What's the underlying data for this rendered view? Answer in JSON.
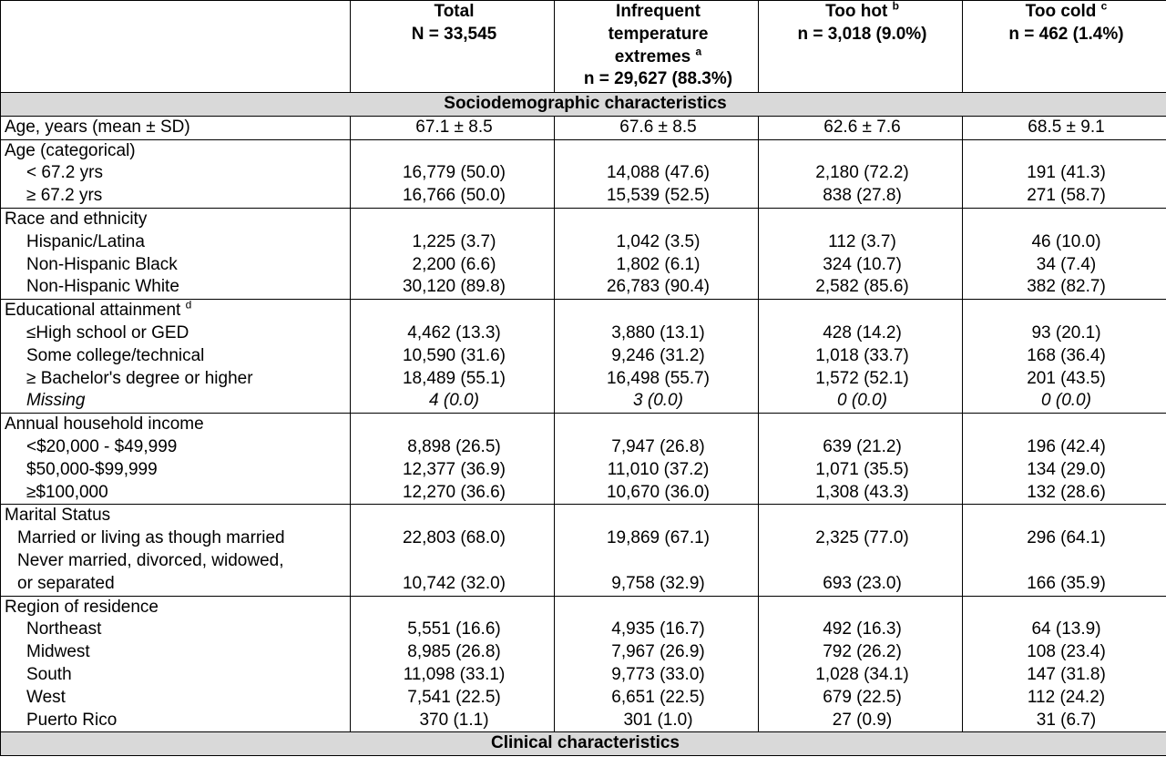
{
  "header": {
    "columns": [
      {
        "l1": "",
        "l2": "",
        "l3": "",
        "l4": "",
        "sup": ""
      },
      {
        "l1": "Total",
        "l2": "N = 33,545",
        "l3": "",
        "l4": "",
        "sup": ""
      },
      {
        "l1": "Infrequent",
        "l2": "temperature",
        "l3": "extremes",
        "l4": "n = 29,627 (88.3%)",
        "sup": "a"
      },
      {
        "l1": "Too hot",
        "l2": "n = 3,018 (9.0%)",
        "l3": "",
        "l4": "",
        "sup": "b"
      },
      {
        "l1": "Too cold",
        "l2": "n = 462 (1.4%)",
        "l3": "",
        "l4": "",
        "sup": "c"
      }
    ]
  },
  "sections": {
    "socio": "Sociodemographic characteristics",
    "clinical": "Clinical characteristics"
  },
  "rows": {
    "age_mean": {
      "label": "Age, years (mean ± SD)",
      "values": [
        "67.1 ± 8.5",
        "67.6 ± 8.5",
        "62.6 ± 7.6",
        "68.5 ± 9.1"
      ]
    },
    "age_cat": {
      "label": "Age (categorical)",
      "items": [
        {
          "label": "< 67.2 yrs",
          "values": [
            "16,779 (50.0)",
            "14,088 (47.6)",
            "2,180 (72.2)",
            "191 (41.3)"
          ]
        },
        {
          "label": "≥ 67.2 yrs",
          "values": [
            "16,766 (50.0)",
            "15,539 (52.5)",
            "838 (27.8)",
            "271 (58.7)"
          ]
        }
      ]
    },
    "race": {
      "label": "Race and ethnicity",
      "items": [
        {
          "label": "Hispanic/Latina",
          "values": [
            "1,225 (3.7)",
            "1,042 (3.5)",
            "112 (3.7)",
            "46 (10.0)"
          ]
        },
        {
          "label": "Non-Hispanic Black",
          "values": [
            "2,200 (6.6)",
            "1,802 (6.1)",
            "324 (10.7)",
            "34 (7.4)"
          ]
        },
        {
          "label": "Non-Hispanic White",
          "values": [
            "30,120 (89.8)",
            "26,783 (90.4)",
            "2,582 (85.6)",
            "382 (82.7)"
          ]
        }
      ]
    },
    "edu": {
      "label": "Educational attainment",
      "sup": "d",
      "items": [
        {
          "label": "≤High school or GED",
          "values": [
            "4,462 (13.3)",
            "3,880 (13.1)",
            "428 (14.2)",
            "93 (20.1)"
          ]
        },
        {
          "label": "Some college/technical",
          "values": [
            "10,590 (31.6)",
            "9,246 (31.2)",
            "1,018 (33.7)",
            "168 (36.4)"
          ]
        },
        {
          "label": "≥ Bachelor's degree or higher",
          "values": [
            "18,489 (55.1)",
            "16,498 (55.7)",
            "1,572 (52.1)",
            "201 (43.5)"
          ]
        },
        {
          "label": "Missing",
          "values": [
            "4 (0.0)",
            "3 (0.0)",
            "0 (0.0)",
            "0 (0.0)"
          ]
        }
      ]
    },
    "income": {
      "label": "Annual household income",
      "items": [
        {
          "label": "<$20,000 - $49,999",
          "values": [
            "8,898 (26.5)",
            "7,947 (26.8)",
            "639 (21.2)",
            "196 (42.4)"
          ]
        },
        {
          "label": "$50,000-$99,999",
          "values": [
            "12,377 (36.9)",
            "11,010 (37.2)",
            "1,071 (35.5)",
            "134 (29.0)"
          ]
        },
        {
          "label": "≥$100,000",
          "values": [
            "12,270 (36.6)",
            "10,670 (36.0)",
            "1,308 (43.3)",
            "132 (28.6)"
          ]
        }
      ]
    },
    "marital": {
      "label": "Marital Status",
      "items": [
        {
          "label": "Married or living as though married",
          "values": [
            "22,803 (68.0)",
            "19,869 (67.1)",
            "2,325 (77.0)",
            "296 (64.1)"
          ]
        },
        {
          "label": "Never married, divorced, widowed,",
          "label2": "or separated",
          "values": [
            "10,742 (32.0)",
            "9,758 (32.9)",
            "693 (23.0)",
            "166 (35.9)"
          ]
        }
      ]
    },
    "region": {
      "label": "Region of residence",
      "items": [
        {
          "label": "Northeast",
          "values": [
            "5,551 (16.6)",
            "4,935 (16.7)",
            "492 (16.3)",
            "64 (13.9)"
          ]
        },
        {
          "label": "Midwest",
          "values": [
            "8,985 (26.8)",
            "7,967 (26.9)",
            "792 (26.2)",
            "108 (23.4)"
          ]
        },
        {
          "label": "South",
          "values": [
            "11,098 (33.1)",
            "9,773 (33.0)",
            "1,028 (34.1)",
            "147 (31.8)"
          ]
        },
        {
          "label": "West",
          "values": [
            "7,541 (22.5)",
            "6,651 (22.5)",
            "679 (22.5)",
            "112 (24.2)"
          ]
        },
        {
          "label": "Puerto Rico",
          "values": [
            "370 (1.1)",
            "301 (1.0)",
            "27 (0.9)",
            "31 (6.7)"
          ]
        }
      ]
    }
  }
}
